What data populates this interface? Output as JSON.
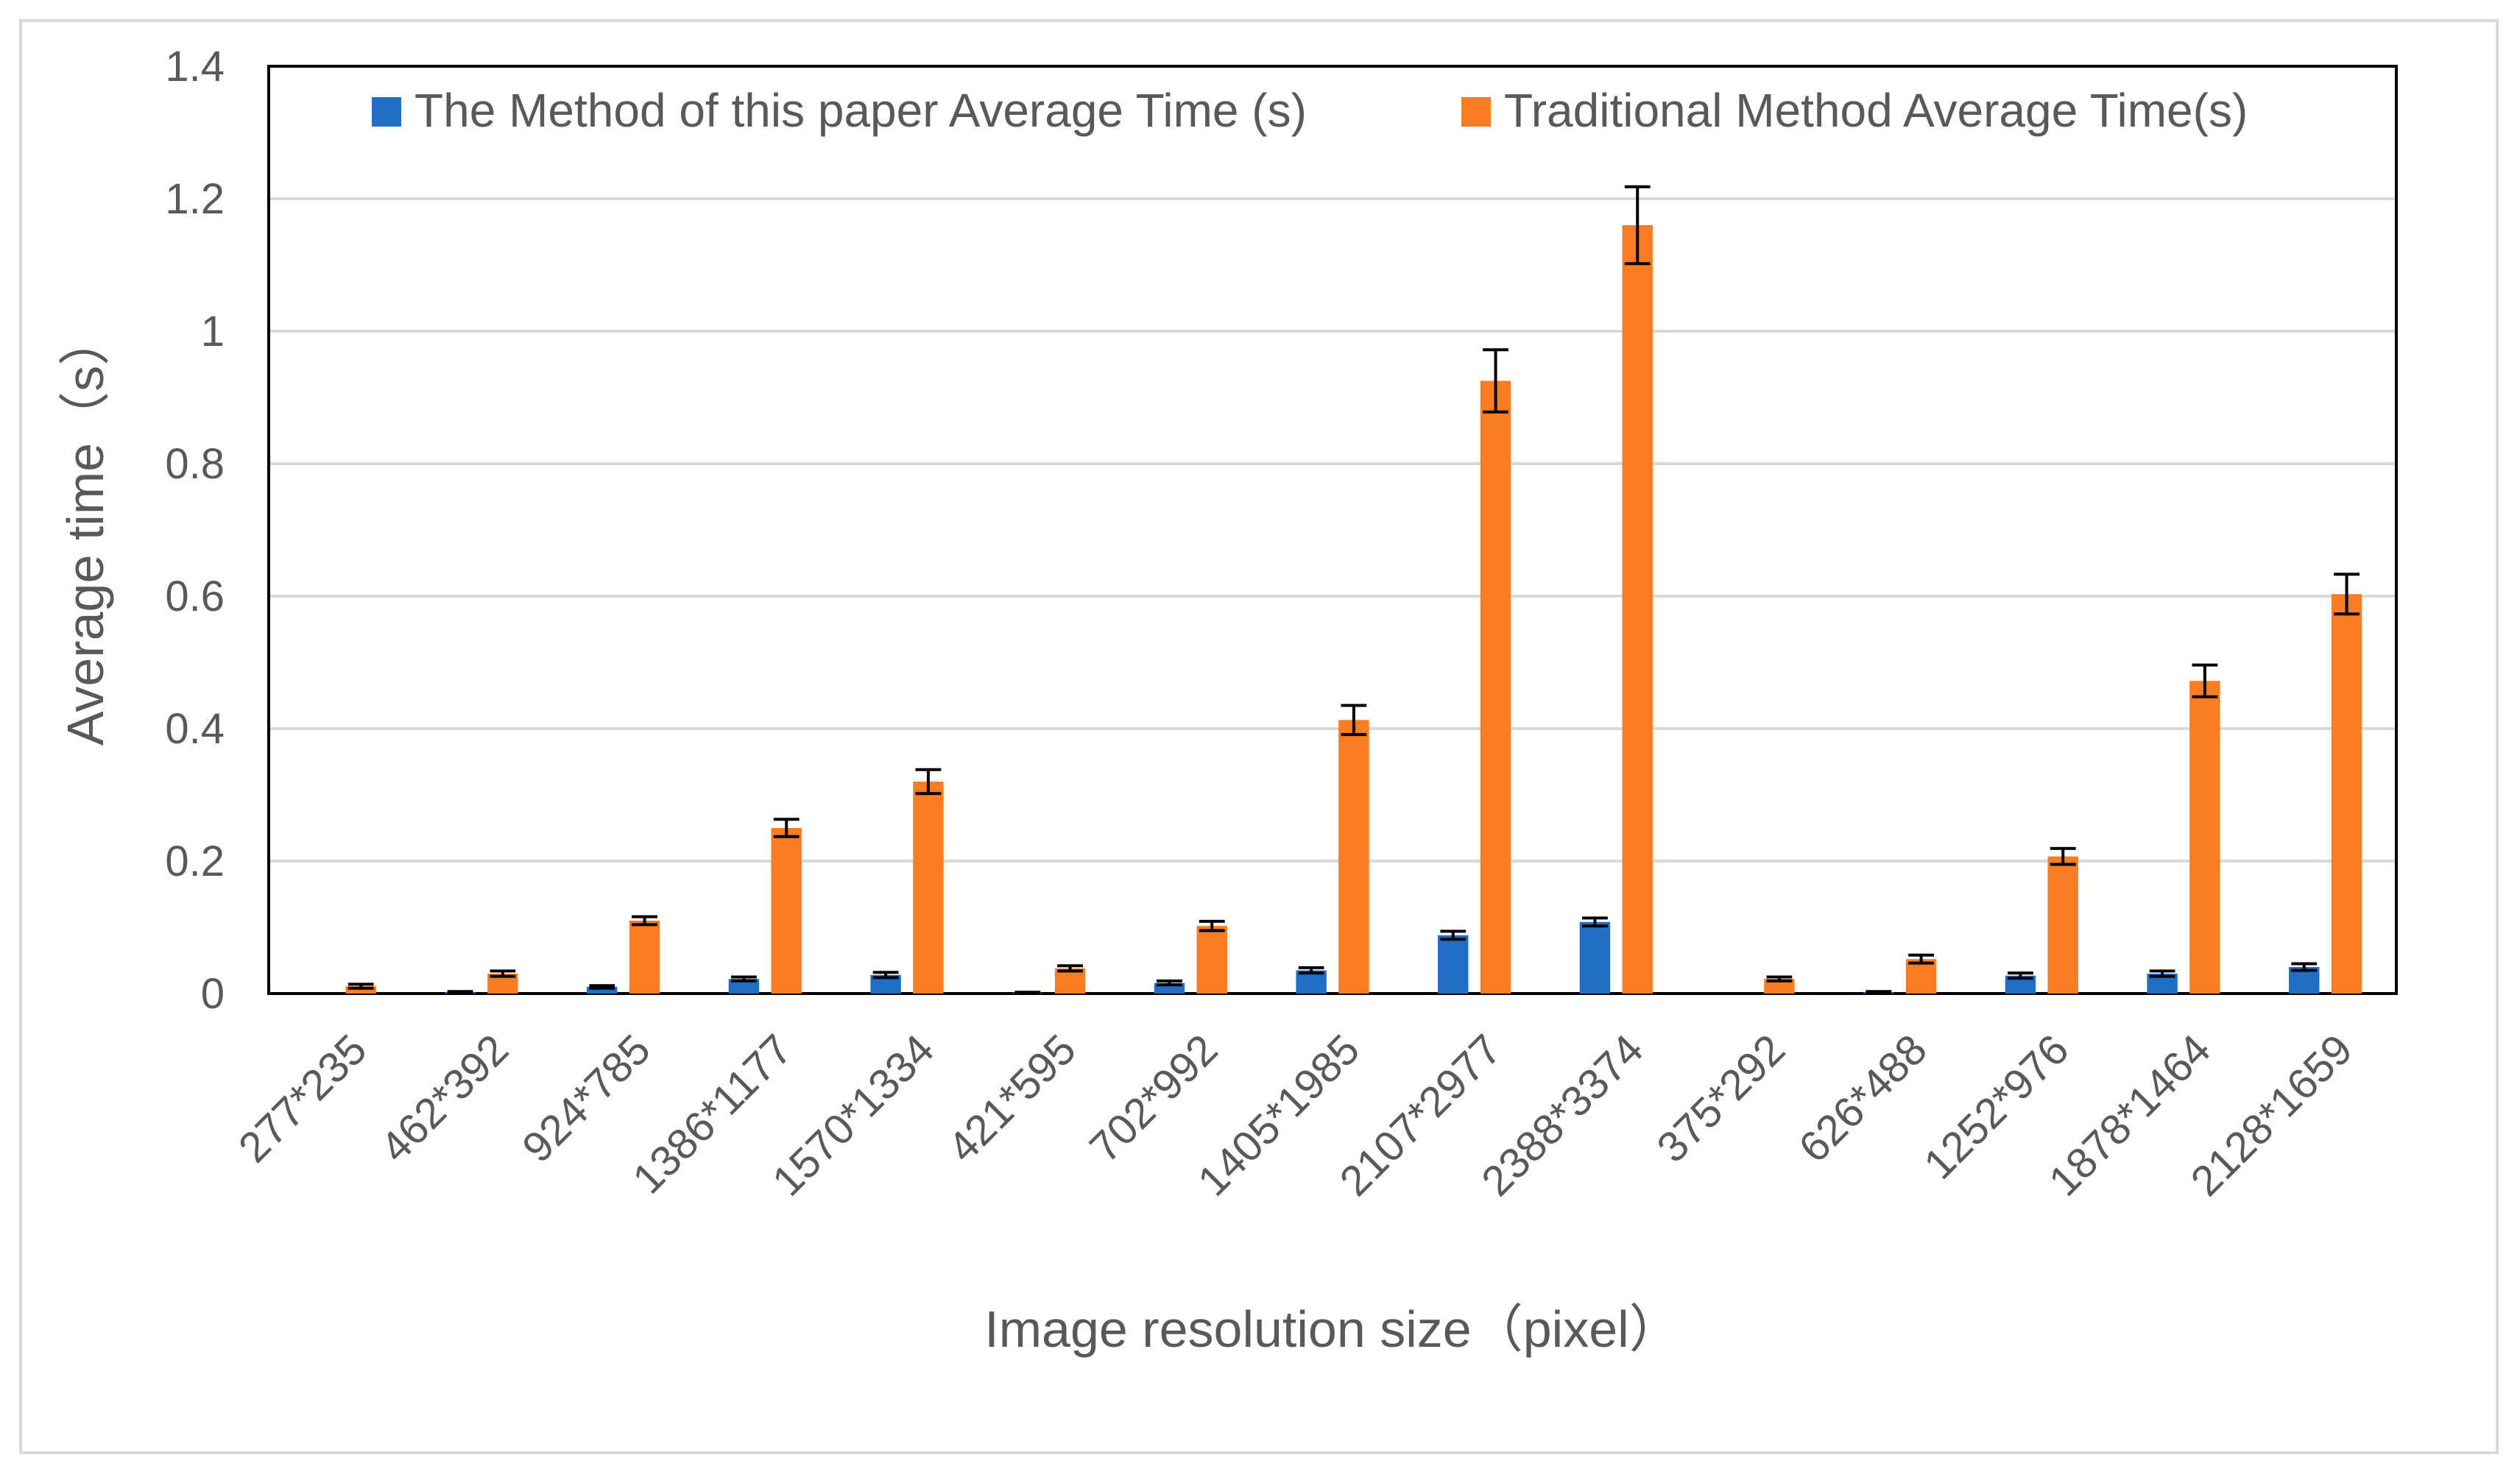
{
  "chart_data": {
    "type": "bar",
    "title": "",
    "xlabel": "Image resolution size（pixel）",
    "ylabel": "Average time（s）",
    "ylim": [
      0,
      1.4
    ],
    "yticks": [
      "0",
      "0.2",
      "0.4",
      "0.6",
      "0.8",
      "1",
      "1.2",
      "1.4"
    ],
    "grid": true,
    "legend_position": "top",
    "categories": [
      "277*235",
      "462*392",
      "924*785",
      "1386*1177",
      "1570*1334",
      "421*595",
      "702*992",
      "1405*1985",
      "2107*2977",
      "2388*3374",
      "375*292",
      "626*488",
      "1252*976",
      "1878*1464",
      "2128*1659"
    ],
    "series": [
      {
        "name": "The  Method of this paper Average Time (s)",
        "color": "#1f6fc5",
        "values": [
          0.0,
          0.002,
          0.01,
          0.022,
          0.028,
          0.001,
          0.016,
          0.035,
          0.088,
          0.108,
          0.0,
          0.002,
          0.027,
          0.03,
          0.04
        ],
        "errors": [
          0.0,
          0.001,
          0.002,
          0.003,
          0.004,
          0.001,
          0.003,
          0.004,
          0.006,
          0.006,
          0.0,
          0.001,
          0.004,
          0.004,
          0.005
        ]
      },
      {
        "name": "Traditional Method Average Time(s)",
        "color": "#fa7d22",
        "values": [
          0.011,
          0.03,
          0.11,
          0.25,
          0.32,
          0.038,
          0.102,
          0.413,
          0.925,
          1.16,
          0.022,
          0.052,
          0.207,
          0.472,
          0.603
        ],
        "errors": [
          0.003,
          0.004,
          0.006,
          0.013,
          0.018,
          0.004,
          0.007,
          0.022,
          0.047,
          0.058,
          0.003,
          0.006,
          0.012,
          0.024,
          0.03
        ]
      }
    ]
  }
}
